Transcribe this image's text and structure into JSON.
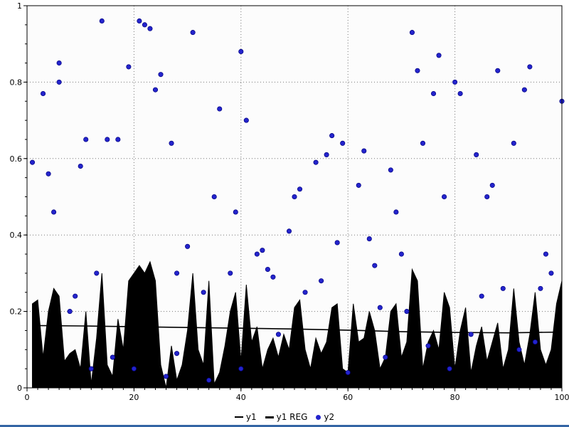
{
  "window": {
    "background": "#ffffff",
    "bottom_bar_color": "#3465a4"
  },
  "chart_data": {
    "type": "mixed",
    "title": "",
    "xlabel": "",
    "ylabel": "",
    "xlim": [
      0,
      100
    ],
    "ylim": [
      0,
      1
    ],
    "x_ticks": [
      0,
      20,
      40,
      60,
      80,
      100
    ],
    "y_ticks": [
      0,
      0.2,
      0.4,
      0.6,
      0.8,
      1
    ],
    "x_minor_step": 2,
    "y_minor_step": 0.05,
    "grid": true,
    "grid_color": "#777777",
    "grid_style": "dotted",
    "plot_bg": "#fcfcfc",
    "border_color": "#000000",
    "legend_position": "bottom",
    "series": [
      {
        "name": "y1",
        "type": "area",
        "color": "#000000",
        "x_start": 1,
        "x_step": 1,
        "values": [
          0.22,
          0.23,
          0.08,
          0.2,
          0.26,
          0.24,
          0.07,
          0.09,
          0.1,
          0.05,
          0.2,
          0.01,
          0.13,
          0.3,
          0.06,
          0.03,
          0.18,
          0.1,
          0.28,
          0.3,
          0.32,
          0.3,
          0.33,
          0.28,
          0.06,
          0.0,
          0.11,
          0.02,
          0.06,
          0.15,
          0.3,
          0.1,
          0.06,
          0.28,
          0.01,
          0.04,
          0.11,
          0.2,
          0.25,
          0.07,
          0.27,
          0.12,
          0.16,
          0.05,
          0.1,
          0.13,
          0.08,
          0.14,
          0.1,
          0.21,
          0.23,
          0.1,
          0.05,
          0.13,
          0.09,
          0.12,
          0.21,
          0.22,
          0.05,
          0.04,
          0.22,
          0.12,
          0.13,
          0.2,
          0.15,
          0.05,
          0.08,
          0.2,
          0.22,
          0.08,
          0.12,
          0.31,
          0.28,
          0.05,
          0.12,
          0.15,
          0.1,
          0.25,
          0.21,
          0.05,
          0.15,
          0.21,
          0.04,
          0.11,
          0.16,
          0.07,
          0.12,
          0.17,
          0.05,
          0.1,
          0.26,
          0.12,
          0.06,
          0.14,
          0.25,
          0.1,
          0.06,
          0.1,
          0.22,
          0.28
        ]
      },
      {
        "name": "y1 REG",
        "type": "line",
        "color": "#000000",
        "points": [
          [
            1,
            0.163
          ],
          [
            10,
            0.162
          ],
          [
            20,
            0.16
          ],
          [
            30,
            0.158
          ],
          [
            40,
            0.156
          ],
          [
            50,
            0.154
          ],
          [
            60,
            0.151
          ],
          [
            70,
            0.147
          ],
          [
            80,
            0.145
          ],
          [
            90,
            0.144
          ],
          [
            100,
            0.146
          ]
        ]
      },
      {
        "name": "y2",
        "type": "scatter",
        "color": "#2424cc",
        "stroke": "#000080",
        "points": [
          [
            1,
            0.59
          ],
          [
            3,
            0.77
          ],
          [
            4,
            0.56
          ],
          [
            5,
            0.46
          ],
          [
            6,
            0.8
          ],
          [
            6,
            0.85
          ],
          [
            8,
            0.2
          ],
          [
            9,
            0.24
          ],
          [
            10,
            0.58
          ],
          [
            11,
            0.65
          ],
          [
            12,
            0.05
          ],
          [
            13,
            0.3
          ],
          [
            14,
            0.96
          ],
          [
            15,
            0.65
          ],
          [
            16,
            0.08
          ],
          [
            17,
            0.65
          ],
          [
            19,
            0.84
          ],
          [
            20,
            0.05
          ],
          [
            21,
            0.96
          ],
          [
            22,
            0.95
          ],
          [
            23,
            0.94
          ],
          [
            24,
            0.78
          ],
          [
            25,
            0.82
          ],
          [
            26,
            0.03
          ],
          [
            27,
            0.64
          ],
          [
            28,
            0.3
          ],
          [
            28,
            0.09
          ],
          [
            30,
            0.37
          ],
          [
            31,
            0.93
          ],
          [
            33,
            0.25
          ],
          [
            34,
            0.02
          ],
          [
            35,
            0.5
          ],
          [
            36,
            0.73
          ],
          [
            38,
            0.3
          ],
          [
            39,
            0.46
          ],
          [
            40,
            0.88
          ],
          [
            40,
            0.05
          ],
          [
            41,
            0.7
          ],
          [
            43,
            0.35
          ],
          [
            44,
            0.36
          ],
          [
            45,
            0.31
          ],
          [
            46,
            0.29
          ],
          [
            47,
            0.14
          ],
          [
            49,
            0.41
          ],
          [
            50,
            0.5
          ],
          [
            51,
            0.52
          ],
          [
            52,
            0.25
          ],
          [
            54,
            0.59
          ],
          [
            55,
            0.28
          ],
          [
            56,
            0.61
          ],
          [
            57,
            0.66
          ],
          [
            58,
            0.38
          ],
          [
            59,
            0.64
          ],
          [
            60,
            0.04
          ],
          [
            62,
            0.53
          ],
          [
            63,
            0.62
          ],
          [
            64,
            0.39
          ],
          [
            65,
            0.32
          ],
          [
            66,
            0.21
          ],
          [
            67,
            0.08
          ],
          [
            68,
            0.57
          ],
          [
            69,
            0.46
          ],
          [
            70,
            0.35
          ],
          [
            71,
            0.2
          ],
          [
            72,
            0.93
          ],
          [
            73,
            0.83
          ],
          [
            74,
            0.64
          ],
          [
            75,
            0.11
          ],
          [
            76,
            0.77
          ],
          [
            77,
            0.87
          ],
          [
            78,
            0.5
          ],
          [
            79,
            0.05
          ],
          [
            80,
            0.8
          ],
          [
            81,
            0.77
          ],
          [
            83,
            0.14
          ],
          [
            84,
            0.61
          ],
          [
            85,
            0.24
          ],
          [
            86,
            0.5
          ],
          [
            87,
            0.53
          ],
          [
            88,
            0.83
          ],
          [
            89,
            0.26
          ],
          [
            91,
            0.64
          ],
          [
            92,
            0.1
          ],
          [
            93,
            0.78
          ],
          [
            94,
            0.84
          ],
          [
            95,
            0.12
          ],
          [
            96,
            0.26
          ],
          [
            97,
            0.35
          ],
          [
            98,
            0.3
          ],
          [
            100,
            0.75
          ]
        ]
      }
    ]
  }
}
